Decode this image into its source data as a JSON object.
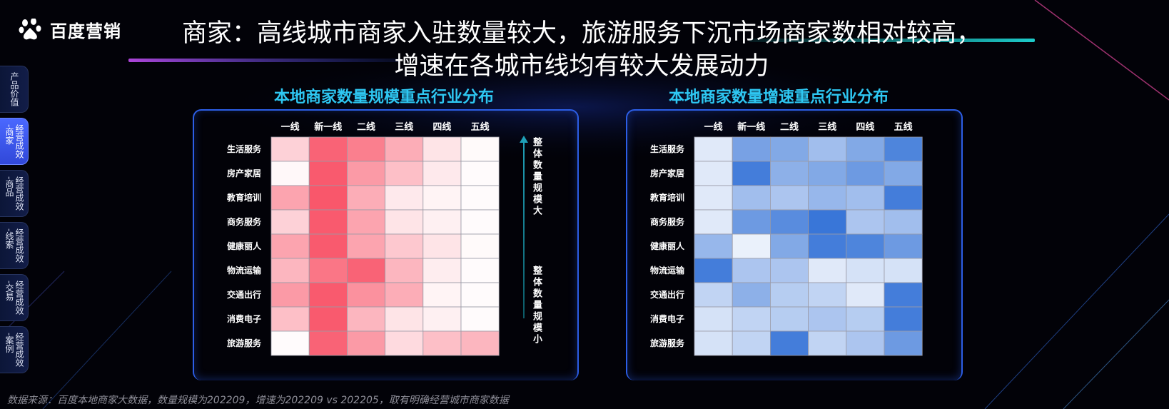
{
  "brand": {
    "logo_text": "百度营销"
  },
  "title": {
    "line1": "商家：高线城市商家入驻数量较大，旅游服务下沉市场商家数相对较高，",
    "line2": "增速在各城市线均有较大发展动力"
  },
  "side_nav": [
    {
      "label": "产品价值",
      "active": false
    },
    {
      "label": "经营成效-商家",
      "active": true
    },
    {
      "label": "经营成效-商品",
      "active": false
    },
    {
      "label": "经营成效-线索",
      "active": false
    },
    {
      "label": "经营成效-交易",
      "active": false
    },
    {
      "label": "经营成效-案例",
      "active": false
    }
  ],
  "scale_labels": {
    "top": "整体数量规模大",
    "bottom": "整体数量规模小"
  },
  "source": "数据来源：百度本地商家大数据，数量规模为202209，增速为202209 vs 202205，取有明确经营城市商家数据",
  "colors": {
    "red": "#f8485e",
    "blue": "#2f6fd6",
    "accent_title": "#2ec7f2"
  },
  "chart_data": [
    {
      "type": "heatmap",
      "title": "本地商家数量规模重点行业分布",
      "x": [
        "一线",
        "新一线",
        "二线",
        "三线",
        "四线",
        "五线"
      ],
      "y": [
        "生活服务",
        "房产家居",
        "教育培训",
        "商务服务",
        "健康丽人",
        "物流运输",
        "交通出行",
        "消费电子",
        "旅游服务"
      ],
      "z": [
        [
          0.25,
          0.85,
          0.7,
          0.45,
          0.15,
          0.03
        ],
        [
          0.04,
          0.9,
          0.55,
          0.35,
          0.12,
          0.02
        ],
        [
          0.5,
          0.92,
          0.45,
          0.12,
          0.06,
          0.02
        ],
        [
          0.25,
          0.9,
          0.5,
          0.15,
          0.08,
          0.02
        ],
        [
          0.5,
          0.9,
          0.5,
          0.3,
          0.15,
          0.03
        ],
        [
          0.4,
          0.75,
          0.85,
          0.4,
          0.1,
          0.02
        ],
        [
          0.55,
          0.9,
          0.6,
          0.45,
          0.06,
          0.02
        ],
        [
          0.35,
          0.9,
          0.4,
          0.15,
          0.08,
          0.02
        ],
        [
          0.02,
          0.85,
          0.55,
          0.2,
          0.35,
          0.4
        ]
      ]
    },
    {
      "type": "heatmap",
      "title": "本地商家数量增速重点行业分布",
      "x": [
        "一线",
        "新一线",
        "二线",
        "三线",
        "四线",
        "五线"
      ],
      "y": [
        "生活服务",
        "房产家居",
        "教育培训",
        "商务服务",
        "健康丽人",
        "物流运输",
        "交通出行",
        "消费电子",
        "旅游服务"
      ],
      "z": [
        [
          0.15,
          0.65,
          0.6,
          0.45,
          0.6,
          0.85
        ],
        [
          0.15,
          0.9,
          0.55,
          0.6,
          0.7,
          0.6
        ],
        [
          0.15,
          0.45,
          0.4,
          0.5,
          0.45,
          0.9
        ],
        [
          0.15,
          0.7,
          0.8,
          0.95,
          0.4,
          0.45
        ],
        [
          0.5,
          0.1,
          0.6,
          0.9,
          0.85,
          0.7
        ],
        [
          0.9,
          0.4,
          0.4,
          0.15,
          0.2,
          0.2
        ],
        [
          0.3,
          0.55,
          0.35,
          0.3,
          0.15,
          0.9
        ],
        [
          0.2,
          0.3,
          0.35,
          0.4,
          0.35,
          0.9
        ],
        [
          0.2,
          0.3,
          0.9,
          0.3,
          0.4,
          0.7
        ]
      ]
    }
  ]
}
